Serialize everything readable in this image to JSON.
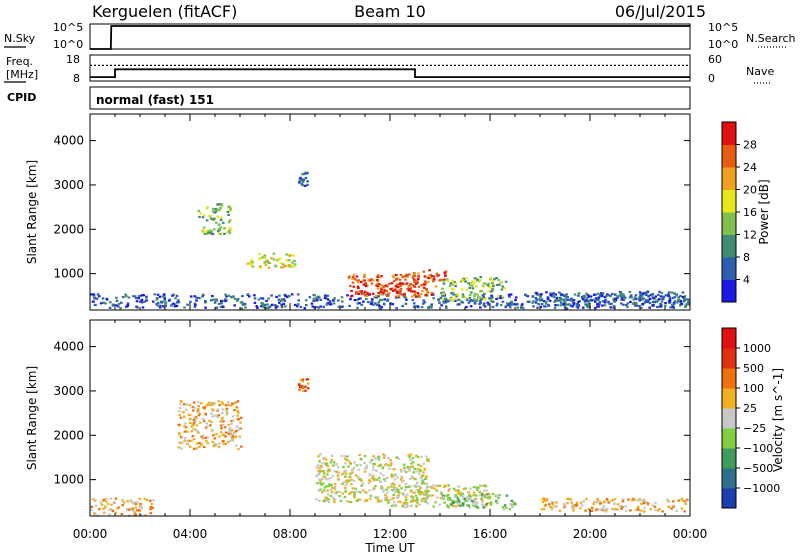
{
  "header": {
    "station": "Kerguelen (fitACF)",
    "beam": "Beam 10",
    "date": "06/Jul/2015"
  },
  "chart_data": [
    {
      "type": "line",
      "panel": "nsky-nsearch",
      "left_label": "N.Sky",
      "right_label": "N.Search",
      "left_ticks": [
        "10^5",
        "10^0"
      ],
      "right_ticks": [
        "10^5",
        "10^0"
      ],
      "series": [
        {
          "name": "N.Sky",
          "style": "solid",
          "x": [
            "00:00",
            "00:50",
            "00:51",
            "24:00"
          ],
          "values": [
            1,
            1,
            40000,
            40000
          ]
        }
      ]
    },
    {
      "type": "line",
      "panel": "freq-nave",
      "left_label": "Freq.",
      "left_unit": "[MHz]",
      "right_label": "Nave",
      "left_ticks": [
        "18",
        "8"
      ],
      "right_ticks": [
        "60",
        "0"
      ],
      "series": [
        {
          "name": "Freq.",
          "style": "solid",
          "axis": "left",
          "x": [
            "00:00",
            "01:00",
            "01:00",
            "13:00",
            "13:00",
            "24:00"
          ],
          "values": [
            9.5,
            9.5,
            12.5,
            12.5,
            9.5,
            9.5
          ]
        },
        {
          "name": "Nave",
          "style": "dotted",
          "axis": "right",
          "x": [
            "00:00",
            "24:00"
          ],
          "values": [
            36,
            36
          ]
        }
      ]
    },
    {
      "type": "table",
      "panel": "cpid",
      "label": "CPID",
      "value": "normal (fast) 151"
    },
    {
      "type": "heatmap",
      "panel": "power",
      "ylabel": "Slant Range [km]",
      "xlabel": "Time UT",
      "ylim": [
        180,
        4600
      ],
      "yticks": [
        "1000",
        "2000",
        "3000",
        "4000"
      ],
      "xticks": [
        "00:00",
        "04:00",
        "08:00",
        "12:00",
        "16:00",
        "20:00",
        "00:00"
      ],
      "colorbar": {
        "label": "Power [dB]",
        "ticks": [
          "4",
          "8",
          "12",
          "16",
          "20",
          "24",
          "28"
        ],
        "colors": [
          "#1a1ae6",
          "#2e5fb0",
          "#3f8c73",
          "#7fc04f",
          "#e6e61a",
          "#f0a020",
          "#e85c10",
          "#e01010"
        ]
      },
      "echoes": [
        {
          "t0": 0.0,
          "t1": 24.0,
          "r0": 240,
          "r1": 560,
          "level": 1
        },
        {
          "t0": 10.3,
          "t1": 13.8,
          "r0": 500,
          "r1": 1000,
          "level": 6
        },
        {
          "t0": 10.8,
          "t1": 12.8,
          "r0": 560,
          "r1": 820,
          "level": 7
        },
        {
          "t0": 12.5,
          "t1": 14.2,
          "r0": 850,
          "r1": 1100,
          "level": 6
        },
        {
          "t0": 6.2,
          "t1": 8.2,
          "r0": 1150,
          "r1": 1500,
          "level": 4
        },
        {
          "t0": 4.3,
          "t1": 5.6,
          "r0": 1900,
          "r1": 2600,
          "level": 3
        },
        {
          "t0": 8.3,
          "t1": 8.7,
          "r0": 3000,
          "r1": 3300,
          "level": 1
        },
        {
          "t0": 14.0,
          "t1": 16.6,
          "r0": 400,
          "r1": 950,
          "level": 3
        },
        {
          "t0": 17.5,
          "t1": 24.0,
          "r0": 280,
          "r1": 620,
          "level": 1
        }
      ]
    },
    {
      "type": "heatmap",
      "panel": "velocity",
      "ylabel": "Slant Range [km]",
      "xlabel": "Time UT",
      "ylim": [
        180,
        4600
      ],
      "yticks": [
        "1000",
        "2000",
        "3000",
        "4000"
      ],
      "xticks": [
        "00:00",
        "04:00",
        "08:00",
        "12:00",
        "16:00",
        "20:00",
        "00:00"
      ],
      "colorbar": {
        "label": "Velocity [m s^-1]",
        "ticks": [
          "1000",
          "500",
          "100",
          "25",
          "−25",
          "−100",
          "−500",
          "−1000"
        ],
        "colors": [
          "#1a3fb0",
          "#2e6f8a",
          "#3f9c5a",
          "#7fd040",
          "#c8c8c8",
          "#f0b020",
          "#f07010",
          "#e03010",
          "#e01010"
        ]
      },
      "echoes": [
        {
          "t0": 0.0,
          "t1": 2.5,
          "r0": 200,
          "r1": 600,
          "level": 5
        },
        {
          "t0": 3.5,
          "t1": 6.0,
          "r0": 1700,
          "r1": 2800,
          "level": 5
        },
        {
          "t0": 8.3,
          "t1": 8.7,
          "r0": 3000,
          "r1": 3300,
          "level": 6
        },
        {
          "t0": 9.0,
          "t1": 13.5,
          "r0": 500,
          "r1": 1600,
          "level": 4
        },
        {
          "t0": 12.0,
          "t1": 16.0,
          "r0": 400,
          "r1": 900,
          "level": 4
        },
        {
          "t0": 14.0,
          "t1": 17.0,
          "r0": 350,
          "r1": 700,
          "level": 3
        },
        {
          "t0": 18.0,
          "t1": 24.0,
          "r0": 300,
          "r1": 600,
          "level": 5
        }
      ]
    }
  ]
}
